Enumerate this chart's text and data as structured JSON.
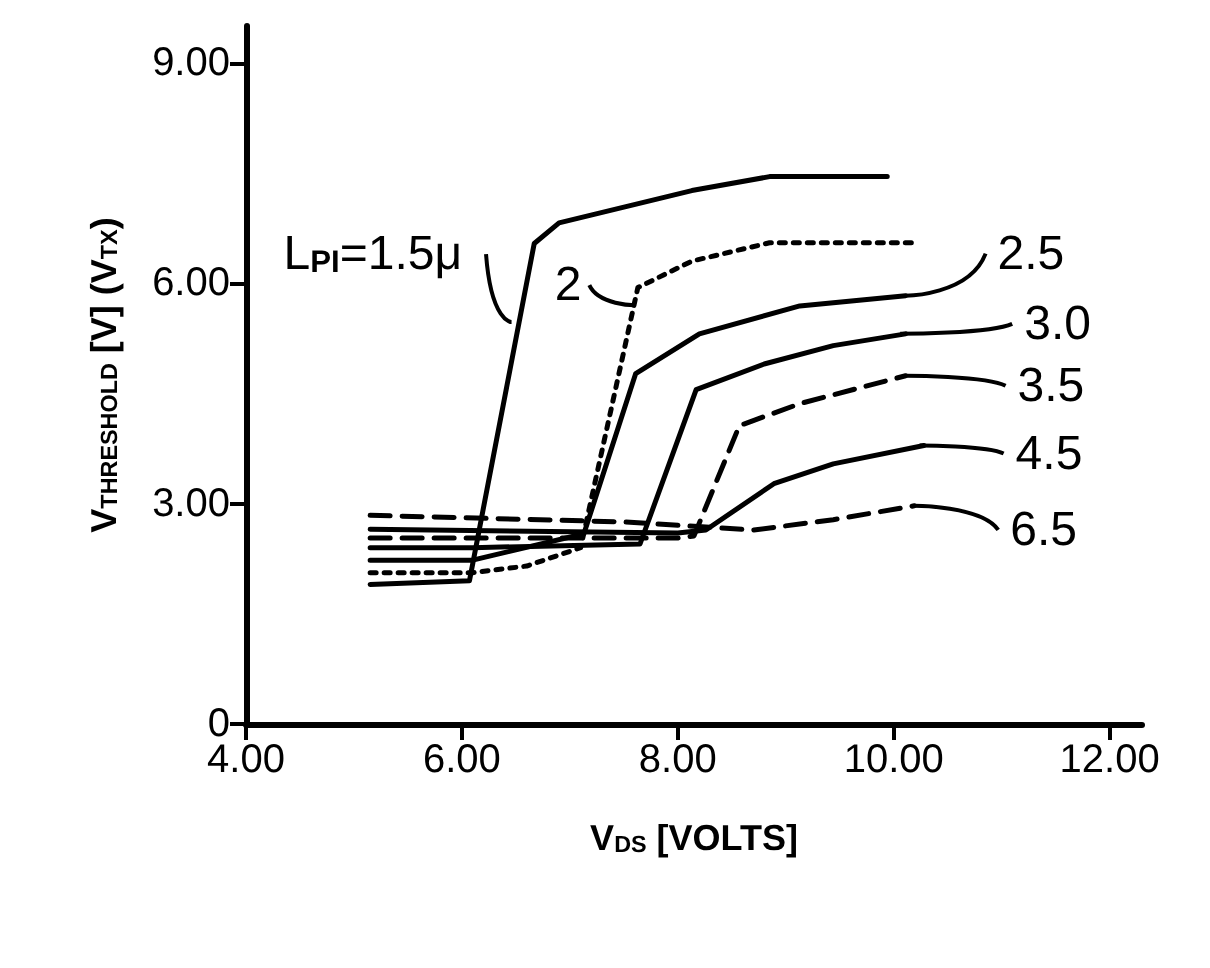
{
  "chart_data": {
    "type": "line",
    "xlabel": "V$_{DS}$ [VOLTS]",
    "ylabel": "V$_{THRESHOLD}$ [V] (V$_{TX}$)",
    "xlim": [
      4,
      12.3
    ],
    "xticks": [
      {
        "value": 4,
        "label": "4.00"
      },
      {
        "value": 6,
        "label": "6.00"
      },
      {
        "value": 8,
        "label": "8.00"
      },
      {
        "value": 10,
        "label": "10.00"
      },
      {
        "value": 12,
        "label": "12.00"
      }
    ],
    "ylim": [
      0,
      9.5
    ],
    "yticks": [
      0,
      {
        "value": 3,
        "label": "3.00"
      },
      {
        "value": 6,
        "label": "6.00"
      },
      {
        "value": 9,
        "label": "9.00"
      }
    ],
    "marker": "none",
    "series": [
      {
        "color": "#000000",
        "line_style": "solid",
        "x": [
          5.15,
          6.07,
          6.67,
          6.9,
          8.13,
          8.85,
          9.94
        ],
        "values": [
          1.9,
          1.95,
          6.54,
          6.82,
          7.26,
          7.45,
          7.45
        ]
      },
      {
        "color": "#000000",
        "line_style": "dotted",
        "x": [
          5.15,
          6.1,
          6.6,
          7.1,
          7.63,
          8.13,
          8.85,
          10.22
        ],
        "values": [
          2.06,
          2.06,
          2.15,
          2.4,
          5.94,
          6.3,
          6.55,
          6.55
        ]
      },
      {
        "color": "#000000",
        "line_style": "solid",
        "x": [
          5.15,
          6.1,
          7.13,
          7.61,
          8.2,
          9.13,
          10.11
        ],
        "values": [
          2.23,
          2.23,
          2.59,
          4.77,
          5.31,
          5.69,
          5.83
        ]
      },
      {
        "color": "#000000",
        "line_style": "solid",
        "x": [
          5.15,
          6.1,
          7.65,
          8.17,
          8.8,
          9.44,
          10.11
        ],
        "values": [
          2.4,
          2.4,
          2.45,
          4.55,
          4.9,
          5.15,
          5.31
        ]
      },
      {
        "color": "#000000",
        "line_style": "dashed",
        "x": [
          5.15,
          8.0,
          8.15,
          8.57,
          9.13,
          10.11
        ],
        "values": [
          2.53,
          2.53,
          2.56,
          4.06,
          4.36,
          4.74
        ]
      },
      {
        "color": "#000000",
        "line_style": "solid",
        "x": [
          5.15,
          8.0,
          8.26,
          8.89,
          9.44,
          10.28
        ],
        "values": [
          2.65,
          2.6,
          2.64,
          3.27,
          3.54,
          3.79
        ]
      },
      {
        "color": "#000000",
        "line_style": "dashed",
        "x": [
          5.15,
          7.5,
          8.7,
          9.44,
          10.19
        ],
        "values": [
          2.84,
          2.75,
          2.64,
          2.78,
          2.97
        ]
      }
    ],
    "annotations": [
      {
        "text": "L$_{PI}$=1.5μ",
        "x": 6.46,
        "y": 5.47
      },
      {
        "text": "2",
        "x": 7.6,
        "y": 5.7
      },
      {
        "text": "2.5",
        "x": 10.11,
        "y": 5.83
      },
      {
        "text": "3.0",
        "x": 10.06,
        "y": 5.31
      },
      {
        "text": "3.5",
        "x": 10.11,
        "y": 4.74
      },
      {
        "text": "4.5",
        "x": 10.24,
        "y": 3.79
      },
      {
        "text": "6.5",
        "x": 10.19,
        "y": 2.97
      }
    ]
  }
}
